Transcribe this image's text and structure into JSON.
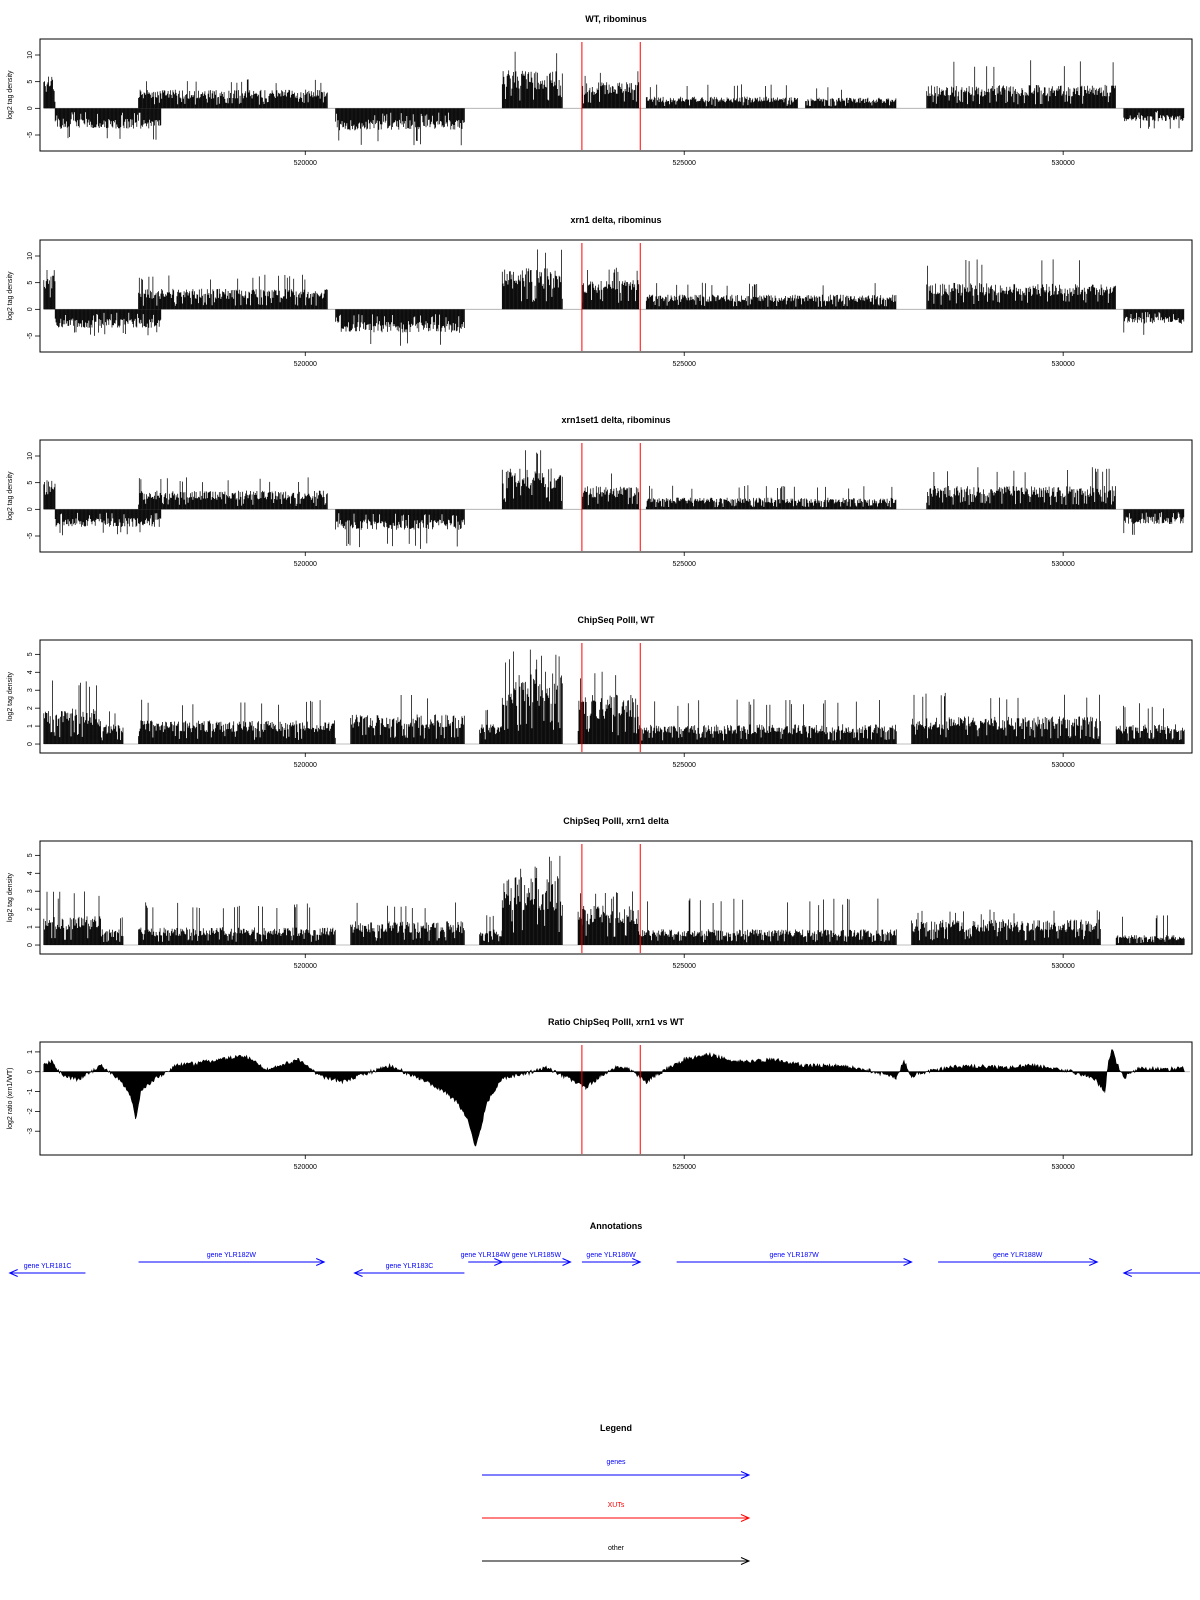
{
  "colors": {
    "signal": "#000000",
    "xut_marker": "#ff0000",
    "gene": "#0000ff",
    "xut": "#ff0000",
    "other": "#000000",
    "baseline": "#aaaaaa"
  },
  "xut_region": [
    523650,
    524420
  ],
  "chart_data": [
    {
      "type": "bar",
      "title": "WT, ribominus",
      "ylabel": "log2 tag density",
      "xlim": [
        516500,
        531700
      ],
      "ylim": [
        -8,
        13
      ],
      "yticks": [
        10,
        5,
        0,
        -5
      ],
      "ytick_labels": [
        "10",
        "5",
        "0",
        "-5"
      ],
      "xticks": [
        520000,
        525000,
        530000
      ],
      "xtick_labels": [
        "520000",
        "525000",
        "530000"
      ],
      "segments": [
        {
          "x": [
            516550,
            516700
          ],
          "y": [
            5.5,
            8
          ]
        },
        {
          "x": [
            516700,
            518100
          ],
          "y": [
            -3.5,
            -6
          ]
        },
        {
          "x": [
            517800,
            520300
          ],
          "y": [
            3.2,
            5.5
          ]
        },
        {
          "x": [
            520400,
            522100
          ],
          "y": [
            -3.8,
            -7
          ]
        },
        {
          "x": [
            522600,
            523400
          ],
          "y": [
            6.5,
            11
          ]
        },
        {
          "x": [
            523650,
            524400
          ],
          "y": [
            4.5,
            7
          ]
        },
        {
          "x": [
            524500,
            526500
          ],
          "y": [
            2.0,
            4.5
          ]
        },
        {
          "x": [
            526600,
            527800
          ],
          "y": [
            1.8,
            4
          ]
        },
        {
          "x": [
            528200,
            530700
          ],
          "y": [
            4.0,
            9
          ]
        },
        {
          "x": [
            530800,
            531600
          ],
          "y": [
            -2.2,
            -4
          ]
        }
      ]
    },
    {
      "type": "bar",
      "title": "xrn1 delta, ribominus",
      "ylabel": "log2 tag density",
      "xlim": [
        516500,
        531700
      ],
      "ylim": [
        -8,
        13
      ],
      "yticks": [
        10,
        5,
        0,
        -5
      ],
      "ytick_labels": [
        "10",
        "5",
        "0",
        "-5"
      ],
      "xticks": [
        520000,
        525000,
        530000
      ],
      "xtick_labels": [
        "520000",
        "525000",
        "530000"
      ],
      "segments": [
        {
          "x": [
            516550,
            516700
          ],
          "y": [
            6,
            8
          ]
        },
        {
          "x": [
            516700,
            518100
          ],
          "y": [
            -3.2,
            -5
          ]
        },
        {
          "x": [
            517800,
            520300
          ],
          "y": [
            3.5,
            6.5
          ]
        },
        {
          "x": [
            520400,
            522100
          ],
          "y": [
            -4,
            -7
          ]
        },
        {
          "x": [
            522600,
            523400
          ],
          "y": [
            7,
            12
          ]
        },
        {
          "x": [
            523650,
            524400
          ],
          "y": [
            5,
            8
          ]
        },
        {
          "x": [
            524500,
            527800
          ],
          "y": [
            2.5,
            5
          ]
        },
        {
          "x": [
            528200,
            530700
          ],
          "y": [
            4.5,
            9.5
          ]
        },
        {
          "x": [
            530800,
            531600
          ],
          "y": [
            -2.5,
            -5
          ]
        }
      ]
    },
    {
      "type": "bar",
      "title": "xrn1set1 delta, ribominus",
      "ylabel": "log2 tag density",
      "xlim": [
        516500,
        531700
      ],
      "ylim": [
        -8,
        13
      ],
      "yticks": [
        10,
        5,
        0,
        -5
      ],
      "ytick_labels": [
        "10",
        "5",
        "0",
        "-5"
      ],
      "xticks": [
        520000,
        525000,
        530000
      ],
      "xtick_labels": [
        "520000",
        "525000",
        "530000"
      ],
      "segments": [
        {
          "x": [
            516550,
            516700
          ],
          "y": [
            5,
            7
          ]
        },
        {
          "x": [
            516700,
            518100
          ],
          "y": [
            -3,
            -5
          ]
        },
        {
          "x": [
            517800,
            520300
          ],
          "y": [
            3.2,
            6
          ]
        },
        {
          "x": [
            520400,
            522100
          ],
          "y": [
            -3.5,
            -7.5
          ]
        },
        {
          "x": [
            522600,
            523400
          ],
          "y": [
            7,
            12
          ]
        },
        {
          "x": [
            523650,
            524400
          ],
          "y": [
            4,
            7
          ]
        },
        {
          "x": [
            524500,
            527800
          ],
          "y": [
            2,
            4.5
          ]
        },
        {
          "x": [
            528200,
            530700
          ],
          "y": [
            4,
            8
          ]
        },
        {
          "x": [
            530800,
            531600
          ],
          "y": [
            -2.5,
            -5
          ]
        }
      ]
    },
    {
      "type": "bar",
      "title": "ChipSeq PolII, WT",
      "ylabel": "log2 tag density",
      "xlim": [
        516500,
        531700
      ],
      "ylim": [
        -0.5,
        5.8
      ],
      "yticks": [
        0,
        1,
        2,
        3,
        4,
        5
      ],
      "ytick_labels": [
        "0",
        "1",
        "2",
        "3",
        "4",
        "5"
      ],
      "xticks": [
        520000,
        525000,
        530000
      ],
      "xtick_labels": [
        "520000",
        "525000",
        "530000"
      ],
      "segments": [
        {
          "x": [
            516550,
            517300
          ],
          "y": [
            1.8,
            3.6
          ]
        },
        {
          "x": [
            517300,
            517600
          ],
          "y": [
            1,
            2
          ]
        },
        {
          "x": [
            517800,
            520400
          ],
          "y": [
            1.2,
            2.5
          ]
        },
        {
          "x": [
            520600,
            522100
          ],
          "y": [
            1.5,
            2.8
          ]
        },
        {
          "x": [
            522300,
            522600
          ],
          "y": [
            1,
            2
          ]
        },
        {
          "x": [
            522600,
            523400
          ],
          "y": [
            3.8,
            5.3
          ]
        },
        {
          "x": [
            523600,
            524400
          ],
          "y": [
            2.5,
            4.3
          ]
        },
        {
          "x": [
            524400,
            527800
          ],
          "y": [
            1,
            2.5
          ]
        },
        {
          "x": [
            528000,
            530500
          ],
          "y": [
            1.4,
            2.9
          ]
        },
        {
          "x": [
            530700,
            531600
          ],
          "y": [
            1,
            2.3
          ]
        }
      ]
    },
    {
      "type": "bar",
      "title": "ChipSeq PolII, xrn1 delta",
      "ylabel": "log2 tag density",
      "xlim": [
        516500,
        531700
      ],
      "ylim": [
        -0.5,
        5.8
      ],
      "yticks": [
        0,
        1,
        2,
        3,
        4,
        5
      ],
      "ytick_labels": [
        "0",
        "1",
        "2",
        "3",
        "4",
        "5"
      ],
      "xticks": [
        520000,
        525000,
        530000
      ],
      "xtick_labels": [
        "520000",
        "525000",
        "530000"
      ],
      "segments": [
        {
          "x": [
            516550,
            517300
          ],
          "y": [
            1.5,
            3
          ]
        },
        {
          "x": [
            517300,
            517600
          ],
          "y": [
            0.8,
            1.6
          ]
        },
        {
          "x": [
            517800,
            520400
          ],
          "y": [
            0.9,
            2.4
          ]
        },
        {
          "x": [
            520600,
            522100
          ],
          "y": [
            1.2,
            2.4
          ]
        },
        {
          "x": [
            522300,
            522600
          ],
          "y": [
            0.8,
            1.7
          ]
        },
        {
          "x": [
            522600,
            523400
          ],
          "y": [
            3.5,
            5
          ]
        },
        {
          "x": [
            523600,
            524400
          ],
          "y": [
            2.0,
            3.0
          ]
        },
        {
          "x": [
            524400,
            527800
          ],
          "y": [
            0.8,
            2.6
          ]
        },
        {
          "x": [
            528000,
            530500
          ],
          "y": [
            1.3,
            2.0
          ]
        },
        {
          "x": [
            530700,
            531600
          ],
          "y": [
            0.5,
            1.7
          ]
        }
      ]
    },
    {
      "type": "area",
      "title": "Ratio ChipSeq PolII, xrn1 vs WT",
      "ylabel": "log2 ratio (xrn1/WT)",
      "xlim": [
        516500,
        531700
      ],
      "ylim": [
        -4.2,
        1.5
      ],
      "yticks": [
        1,
        0,
        -1,
        -2,
        -3
      ],
      "ytick_labels": [
        "1",
        "0",
        "-1",
        "-2",
        "-3"
      ],
      "xticks": [
        520000,
        525000,
        530000
      ],
      "xtick_labels": [
        "520000",
        "525000",
        "530000"
      ],
      "x": [
        516550,
        516650,
        516800,
        517000,
        517300,
        517550,
        517700,
        517760,
        517830,
        518000,
        518300,
        518700,
        519200,
        519500,
        519900,
        520200,
        520500,
        520800,
        521100,
        521500,
        521800,
        522000,
        522150,
        522250,
        522400,
        522600,
        522900,
        523200,
        523500,
        523700,
        523900,
        524100,
        524300,
        524500,
        524600,
        524800,
        525000,
        525300,
        525500,
        525800,
        526200,
        526600,
        527000,
        527400,
        527800,
        527900,
        528000,
        528300,
        528700,
        529200,
        529600,
        530000,
        530400,
        530550,
        530600,
        530650,
        530700,
        530800,
        531000,
        531300,
        531600
      ],
      "y": [
        0.3,
        0.5,
        -0.2,
        -0.4,
        0.3,
        -0.4,
        -1.2,
        -2.4,
        -1.0,
        -0.4,
        0.3,
        0.5,
        0.8,
        0.1,
        0.6,
        -0.2,
        -0.5,
        -0.1,
        0.3,
        -0.3,
        -0.9,
        -1.5,
        -2.5,
        -3.8,
        -1.5,
        -0.3,
        -0.1,
        0.2,
        -0.4,
        -0.8,
        -0.2,
        0.2,
        0.1,
        -0.5,
        -0.2,
        0.2,
        0.6,
        0.9,
        0.7,
        0.5,
        0.6,
        0.3,
        0.3,
        0.1,
        -0.3,
        0.5,
        -0.2,
        0.1,
        0.3,
        0.2,
        0.3,
        0.1,
        -0.3,
        -1.0,
        0.6,
        1.2,
        0.5,
        -0.3,
        0.2,
        0.1,
        0.2
      ]
    }
  ],
  "annotations": {
    "title": "Annotations",
    "genes": [
      {
        "name": "gene YLR181C",
        "start": 517100,
        "end": 516100,
        "row": 1
      },
      {
        "name": "gene YLR182W",
        "start": 517800,
        "end": 520250,
        "row": 0
      },
      {
        "name": "gene YLR183C",
        "start": 522100,
        "end": 520650,
        "row": 1
      },
      {
        "name": "gene YLR184W",
        "start": 522150,
        "end": 522600,
        "row": 0
      },
      {
        "name": "gene YLR185W",
        "start": 522600,
        "end": 523500,
        "row": 0
      },
      {
        "name": "gene YLR186W",
        "start": 523650,
        "end": 524420,
        "row": 0
      },
      {
        "name": "gene YLR187W",
        "start": 524900,
        "end": 528000,
        "row": 0
      },
      {
        "name": "gene YLR188W",
        "start": 528350,
        "end": 530450,
        "row": 0
      },
      {
        "name": "",
        "start": 532300,
        "end": 530800,
        "row": 1
      }
    ]
  },
  "legend": {
    "title": "Legend",
    "items": [
      {
        "label": "genes",
        "color": "#0000ff"
      },
      {
        "label": "XUTs",
        "color": "#ff0000"
      },
      {
        "label": "other",
        "color": "#000000"
      }
    ]
  }
}
